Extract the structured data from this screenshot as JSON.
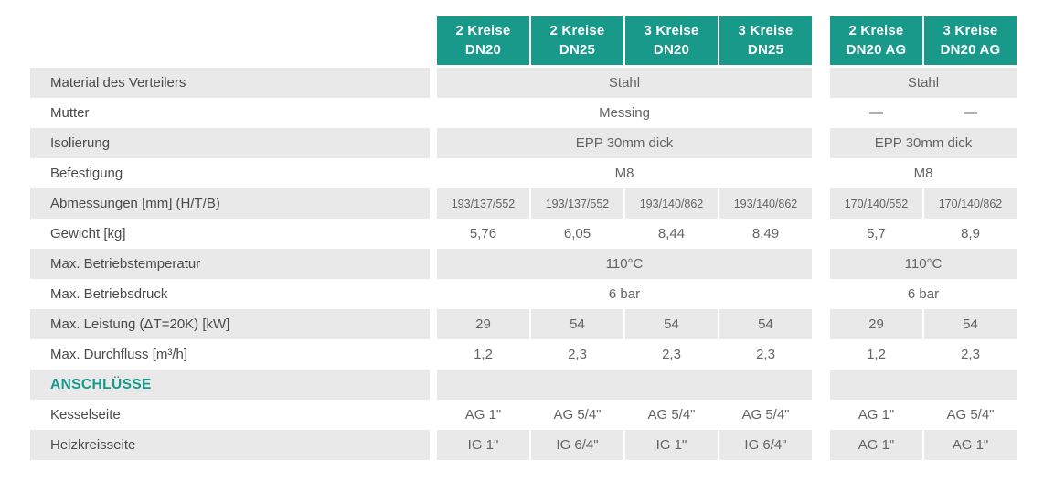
{
  "colors": {
    "accent_teal": "#18998a",
    "row_stripe_gray": "#e9e9e9",
    "label_text": "#4a4a4a",
    "value_text": "#636363",
    "header_text": "#ffffff"
  },
  "table": {
    "columns": [
      {
        "line1": "2 Kreise",
        "line2": "DN20",
        "group": "main"
      },
      {
        "line1": "2 Kreise",
        "line2": "DN25",
        "group": "main"
      },
      {
        "line1": "3 Kreise",
        "line2": "DN20",
        "group": "main"
      },
      {
        "line1": "3 Kreise",
        "line2": "DN25",
        "group": "main"
      },
      {
        "line1": "2 Kreise",
        "line2": "DN20 AG",
        "group": "ag"
      },
      {
        "line1": "3 Kreise",
        "line2": "DN20 AG",
        "group": "ag"
      }
    ],
    "rows": [
      {
        "label": "Material des Verteilers",
        "main_span": "Stahl",
        "ag_span": "Stahl"
      },
      {
        "label": "Mutter",
        "main_span": "Messing",
        "ag_cells": [
          "—",
          "—"
        ]
      },
      {
        "label": "Isolierung",
        "main_span": "EPP 30mm dick",
        "ag_span": "EPP 30mm dick"
      },
      {
        "label": "Befestigung",
        "main_span": "M8",
        "ag_span": "M8"
      },
      {
        "label": "Abmessungen [mm] (H/T/B)",
        "small": true,
        "main_cells": [
          "193/137/552",
          "193/137/552",
          "193/140/862",
          "193/140/862"
        ],
        "ag_cells": [
          "170/140/552",
          "170/140/862"
        ]
      },
      {
        "label": "Gewicht [kg]",
        "main_cells": [
          "5,76",
          "6,05",
          "8,44",
          "8,49"
        ],
        "ag_cells": [
          "5,7",
          "8,9"
        ]
      },
      {
        "label": "Max. Betriebstemperatur",
        "main_span": "110°C",
        "ag_span": "110°C"
      },
      {
        "label": "Max. Betriebsdruck",
        "main_span": "6 bar",
        "ag_span": "6 bar"
      },
      {
        "label": "Max. Leistung (ΔT=20K) [kW]",
        "main_cells": [
          "29",
          "54",
          "54",
          "54"
        ],
        "ag_cells": [
          "29",
          "54"
        ]
      },
      {
        "label": "Max. Durchfluss [m³/h]",
        "main_cells": [
          "1,2",
          "2,3",
          "2,3",
          "2,3"
        ],
        "ag_cells": [
          "1,2",
          "2,3"
        ]
      },
      {
        "label": "ANSCHLÜSSE",
        "section": true
      },
      {
        "label": "Kesselseite",
        "main_cells": [
          "AG 1\"",
          "AG 5/4\"",
          "AG 5/4\"",
          "AG 5/4\""
        ],
        "ag_cells": [
          "AG 1\"",
          "AG 5/4\""
        ]
      },
      {
        "label": "Heizkreisseite",
        "main_cells": [
          "IG 1\"",
          "IG 6/4\"",
          "IG 1\"",
          "IG 6/4\""
        ],
        "ag_cells": [
          "AG 1\"",
          "AG 1\""
        ]
      }
    ]
  }
}
